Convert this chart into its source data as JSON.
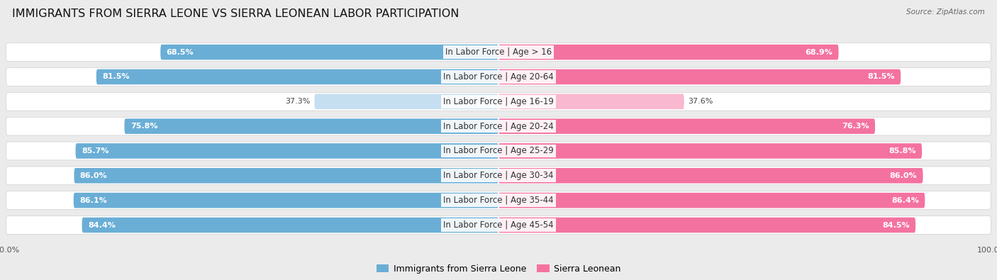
{
  "title": "IMMIGRANTS FROM SIERRA LEONE VS SIERRA LEONEAN LABOR PARTICIPATION",
  "source": "Source: ZipAtlas.com",
  "categories": [
    "In Labor Force | Age > 16",
    "In Labor Force | Age 20-64",
    "In Labor Force | Age 16-19",
    "In Labor Force | Age 20-24",
    "In Labor Force | Age 25-29",
    "In Labor Force | Age 30-34",
    "In Labor Force | Age 35-44",
    "In Labor Force | Age 45-54"
  ],
  "left_values": [
    68.5,
    81.5,
    37.3,
    75.8,
    85.7,
    86.0,
    86.1,
    84.4
  ],
  "right_values": [
    68.9,
    81.5,
    37.6,
    76.3,
    85.8,
    86.0,
    86.4,
    84.5
  ],
  "left_color": "#6aaed6",
  "left_color_light": "#c5dff0",
  "right_color": "#f472a0",
  "right_color_light": "#f9b8cf",
  "background_color": "#ebebeb",
  "legend_left": "Immigrants from Sierra Leone",
  "legend_right": "Sierra Leonean",
  "max_value": 100.0,
  "title_fontsize": 11.5,
  "label_fontsize": 8.5,
  "value_fontsize": 8.0,
  "axis_label_fontsize": 8
}
